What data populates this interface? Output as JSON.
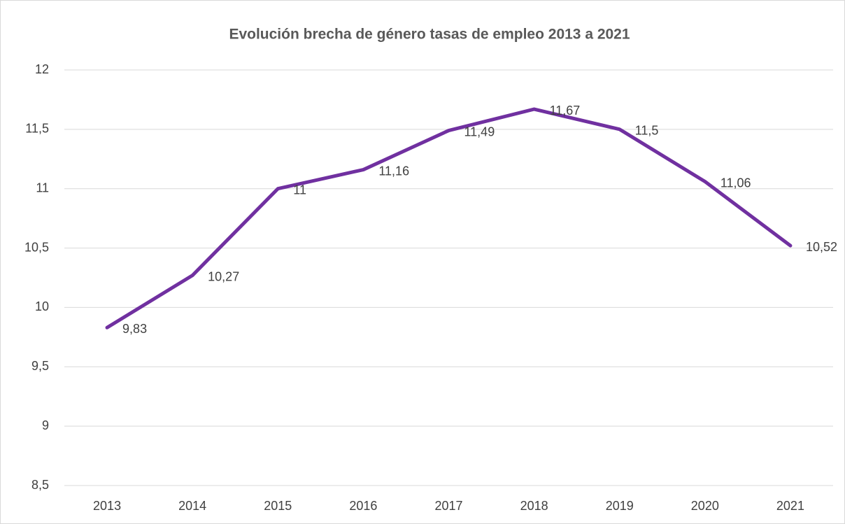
{
  "chart_data": {
    "type": "line",
    "title": "Evolución brecha de género tasas de empleo 2013 a 2021",
    "categories": [
      "2013",
      "2014",
      "2015",
      "2016",
      "2017",
      "2018",
      "2019",
      "2020",
      "2021"
    ],
    "series": [
      {
        "name": "Brecha de género",
        "color": "#7030a0",
        "values": [
          9.83,
          10.27,
          11,
          11.16,
          11.49,
          11.67,
          11.5,
          11.06,
          10.52
        ],
        "value_labels": [
          "9,83",
          "10,27",
          "11",
          "11,16",
          "11,49",
          "11,67",
          "11,5",
          "11,06",
          "10,52"
        ]
      }
    ],
    "ylim": [
      8.5,
      12
    ],
    "yticks": [
      {
        "value": 8.5,
        "label": "8,5"
      },
      9,
      {
        "value": 9.5,
        "label": "9,5"
      },
      10,
      {
        "value": 10.5,
        "label": "10,5"
      },
      11,
      {
        "value": 11.5,
        "label": "11,5"
      },
      12
    ],
    "grid": true,
    "legend": false
  }
}
